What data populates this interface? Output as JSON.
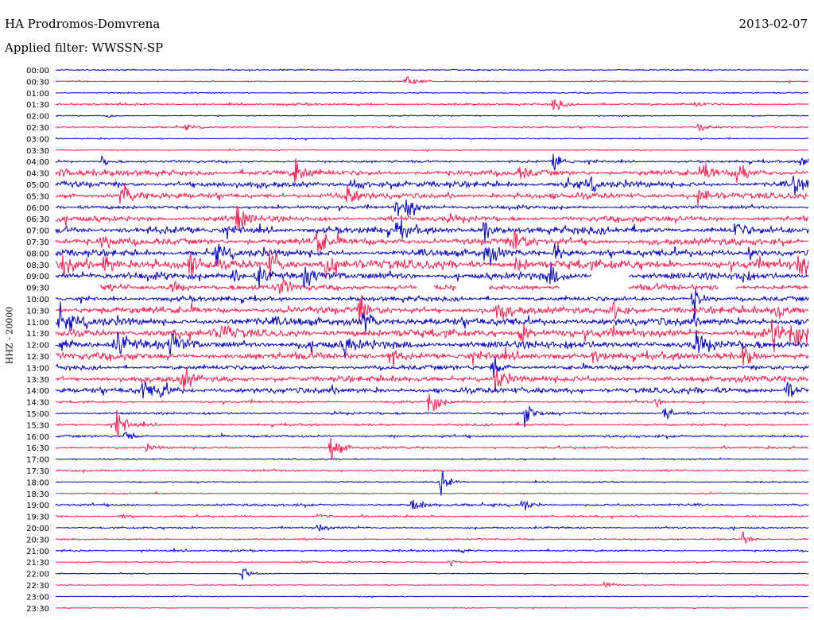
{
  "header": {
    "station": "HA Prodromos-Domvrena",
    "date": "2013-02-07",
    "filter": "Applied filter: WWSSN-SP"
  },
  "chart_data": {
    "type": "line",
    "title": "HA Prodromos-Domvrena",
    "ylabel": "HHZ - 20000",
    "rows": [
      "00:00",
      "00:30",
      "01:00",
      "01:30",
      "02:00",
      "02:30",
      "03:00",
      "03:30",
      "04:00",
      "04:30",
      "05:00",
      "05:30",
      "06:00",
      "06:30",
      "07:00",
      "07:30",
      "08:00",
      "08:30",
      "09:00",
      "09:30",
      "10:00",
      "10:30",
      "11:00",
      "11:30",
      "12:00",
      "12:30",
      "13:00",
      "13:30",
      "14:00",
      "14:30",
      "15:00",
      "15:30",
      "16:00",
      "16:30",
      "17:00",
      "17:30",
      "18:00",
      "18:30",
      "19:00",
      "19:30",
      "20:00",
      "20:30",
      "21:00",
      "21:30",
      "22:00",
      "22:30",
      "23:00",
      "23:30"
    ],
    "colors": [
      "#0000cc",
      "#ff1a4d"
    ],
    "noise_level": [
      0.5,
      0.6,
      0.5,
      0.9,
      0.5,
      0.7,
      0.5,
      0.5,
      1.0,
      2.5,
      2.5,
      2.5,
      1.5,
      2.5,
      3.0,
      3.0,
      3.0,
      4.0,
      3.0,
      2.5,
      2.0,
      3.0,
      3.5,
      3.5,
      3.5,
      3.0,
      2.0,
      2.5,
      2.5,
      1.0,
      1.0,
      1.0,
      1.0,
      1.0,
      0.6,
      0.8,
      0.6,
      0.6,
      1.0,
      0.8,
      0.8,
      0.8,
      0.8,
      0.6,
      0.4,
      0.4,
      0.4,
      0.4
    ],
    "events": [
      {
        "row": 1,
        "x": 511,
        "amp": 6
      },
      {
        "row": 3,
        "x": 697,
        "amp": 7
      },
      {
        "row": 3,
        "x": 876,
        "amp": 3
      },
      {
        "row": 4,
        "x": 136,
        "amp": 2
      },
      {
        "row": 5,
        "x": 880,
        "amp": 4
      },
      {
        "row": 5,
        "x": 233,
        "amp": 2
      },
      {
        "row": 8,
        "x": 697,
        "amp": 12
      },
      {
        "row": 8,
        "x": 1008,
        "amp": 8
      },
      {
        "row": 8,
        "x": 127,
        "amp": 5
      },
      {
        "row": 9,
        "x": 372,
        "amp": 14
      },
      {
        "row": 9,
        "x": 887,
        "amp": 10
      },
      {
        "row": 9,
        "x": 928,
        "amp": 12
      },
      {
        "row": 9,
        "x": 77,
        "amp": 5
      },
      {
        "row": 9,
        "x": 655,
        "amp": 6
      },
      {
        "row": 10,
        "x": 443,
        "amp": 10
      },
      {
        "row": 10,
        "x": 1000,
        "amp": 12
      },
      {
        "row": 10,
        "x": 740,
        "amp": 7
      },
      {
        "row": 10,
        "x": 708,
        "amp": 6
      },
      {
        "row": 11,
        "x": 153,
        "amp": 12
      },
      {
        "row": 11,
        "x": 437,
        "amp": 10
      },
      {
        "row": 11,
        "x": 880,
        "amp": 12
      },
      {
        "row": 12,
        "x": 513,
        "amp": 12
      },
      {
        "row": 12,
        "x": 498,
        "amp": 8
      },
      {
        "row": 13,
        "x": 298,
        "amp": 12
      },
      {
        "row": 14,
        "x": 608,
        "amp": 12
      },
      {
        "row": 14,
        "x": 925,
        "amp": 8
      },
      {
        "row": 14,
        "x": 500,
        "amp": 10
      },
      {
        "row": 15,
        "x": 398,
        "amp": 14
      },
      {
        "row": 15,
        "x": 648,
        "amp": 14
      },
      {
        "row": 15,
        "x": 128,
        "amp": 6
      },
      {
        "row": 16,
        "x": 612,
        "amp": 12
      },
      {
        "row": 16,
        "x": 272,
        "amp": 8
      },
      {
        "row": 16,
        "x": 699,
        "amp": 10
      },
      {
        "row": 16,
        "x": 943,
        "amp": 6
      },
      {
        "row": 17,
        "x": 80,
        "amp": 14
      },
      {
        "row": 17,
        "x": 131,
        "amp": 12
      },
      {
        "row": 17,
        "x": 340,
        "amp": 14
      },
      {
        "row": 17,
        "x": 411,
        "amp": 14
      },
      {
        "row": 17,
        "x": 240,
        "amp": 10
      },
      {
        "row": 17,
        "x": 1006,
        "amp": 12
      },
      {
        "row": 17,
        "x": 650,
        "amp": 8
      },
      {
        "row": 18,
        "x": 323,
        "amp": 12
      },
      {
        "row": 18,
        "x": 384,
        "amp": 12
      },
      {
        "row": 18,
        "x": 690,
        "amp": 12
      },
      {
        "row": 18,
        "x": 293,
        "amp": 8
      },
      {
        "row": 18,
        "x": 930,
        "amp": 8
      },
      {
        "row": 19,
        "x": 218,
        "amp": 7
      },
      {
        "row": 19,
        "x": 352,
        "amp": 8
      },
      {
        "row": 20,
        "x": 872,
        "amp": 14
      },
      {
        "row": 21,
        "x": 452,
        "amp": 12
      },
      {
        "row": 21,
        "x": 627,
        "amp": 12
      },
      {
        "row": 21,
        "x": 770,
        "amp": 10
      },
      {
        "row": 21,
        "x": 975,
        "amp": 12
      },
      {
        "row": 22,
        "x": 75,
        "amp": 12
      },
      {
        "row": 22,
        "x": 457,
        "amp": 12
      },
      {
        "row": 23,
        "x": 278,
        "amp": 10
      },
      {
        "row": 23,
        "x": 655,
        "amp": 10
      },
      {
        "row": 23,
        "x": 972,
        "amp": 14
      },
      {
        "row": 23,
        "x": 996,
        "amp": 14
      },
      {
        "row": 24,
        "x": 147,
        "amp": 12
      },
      {
        "row": 24,
        "x": 215,
        "amp": 14
      },
      {
        "row": 24,
        "x": 877,
        "amp": 10
      },
      {
        "row": 24,
        "x": 78,
        "amp": 8
      },
      {
        "row": 24,
        "x": 435,
        "amp": 8
      },
      {
        "row": 25,
        "x": 490,
        "amp": 12
      },
      {
        "row": 25,
        "x": 935,
        "amp": 12
      },
      {
        "row": 25,
        "x": 747,
        "amp": 8
      },
      {
        "row": 26,
        "x": 620,
        "amp": 12
      },
      {
        "row": 27,
        "x": 230,
        "amp": 12
      },
      {
        "row": 27,
        "x": 624,
        "amp": 12
      },
      {
        "row": 28,
        "x": 178,
        "amp": 12
      },
      {
        "row": 28,
        "x": 990,
        "amp": 12
      },
      {
        "row": 28,
        "x": 202,
        "amp": 8
      },
      {
        "row": 29,
        "x": 540,
        "amp": 14
      },
      {
        "row": 29,
        "x": 826,
        "amp": 4
      },
      {
        "row": 30,
        "x": 661,
        "amp": 12
      },
      {
        "row": 30,
        "x": 836,
        "amp": 8
      },
      {
        "row": 31,
        "x": 147,
        "amp": 14
      },
      {
        "row": 32,
        "x": 158,
        "amp": 6
      },
      {
        "row": 33,
        "x": 417,
        "amp": 14
      },
      {
        "row": 33,
        "x": 184,
        "amp": 3
      },
      {
        "row": 36,
        "x": 555,
        "amp": 10
      },
      {
        "row": 38,
        "x": 520,
        "amp": 8
      },
      {
        "row": 38,
        "x": 657,
        "amp": 6
      },
      {
        "row": 39,
        "x": 151,
        "amp": 3
      },
      {
        "row": 39,
        "x": 400,
        "amp": 3
      },
      {
        "row": 40,
        "x": 400,
        "amp": 4
      },
      {
        "row": 41,
        "x": 935,
        "amp": 6
      },
      {
        "row": 42,
        "x": 576,
        "amp": 3
      },
      {
        "row": 43,
        "x": 567,
        "amp": 4
      },
      {
        "row": 43,
        "x": 380,
        "amp": 2
      },
      {
        "row": 44,
        "x": 305,
        "amp": 7
      },
      {
        "row": 45,
        "x": 762,
        "amp": 4
      }
    ],
    "gaps": [
      {
        "row": 18,
        "x1": 745,
        "x2": 790
      },
      {
        "row": 19,
        "x1": 70,
        "x2": 125
      },
      {
        "row": 19,
        "x1": 525,
        "x2": 545
      },
      {
        "row": 19,
        "x1": 575,
        "x2": 615
      },
      {
        "row": 19,
        "x1": 705,
        "x2": 790
      },
      {
        "row": 19,
        "x1": 905,
        "x2": 925
      }
    ]
  }
}
